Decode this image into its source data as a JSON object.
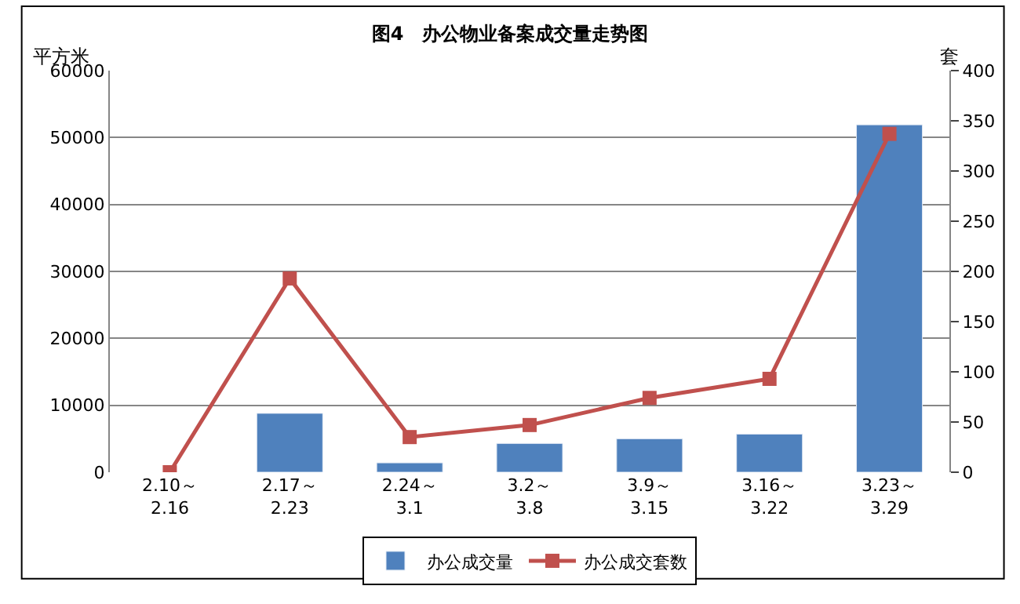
{
  "chart_data": {
    "type": "bar",
    "title": "图4　办公物业备案成交量走势图",
    "ylabel": "平方米",
    "y2label": "套",
    "categories": [
      "2.10～\n2.16",
      "2.17～\n2.23",
      "2.24～\n3.1",
      "3.2～\n3.8",
      "3.9～\n3.15",
      "3.16～\n3.22",
      "3.23～\n3.29"
    ],
    "series": [
      {
        "name": "办公成交量",
        "color": "#4f81bd",
        "values": [
          null,
          8800,
          1400,
          4300,
          5000,
          5700,
          51900
        ]
      },
      {
        "name": "办公成交套数",
        "type": "line",
        "axis": "y2",
        "color": "#c0504d",
        "marker": "square",
        "values": [
          0,
          193,
          35,
          47,
          74,
          93,
          337
        ]
      }
    ],
    "ylim": [
      0,
      60000
    ],
    "yticks": [
      0,
      10000,
      20000,
      30000,
      40000,
      50000,
      60000
    ],
    "y2lim": [
      0,
      400
    ],
    "y2ticks": [
      0,
      50,
      100,
      150,
      200,
      250,
      300,
      350,
      400
    ],
    "grid": "y",
    "legend": "bottom"
  }
}
